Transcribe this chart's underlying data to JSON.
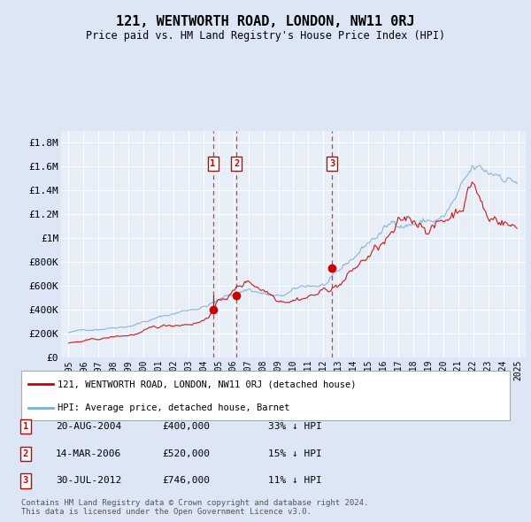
{
  "title": "121, WENTWORTH ROAD, LONDON, NW11 0RJ",
  "subtitle": "Price paid vs. HM Land Registry's House Price Index (HPI)",
  "bg_color": "#dce6f5",
  "plot_bg_color": "#e8eef8",
  "transaction_dates_decimal": [
    2004.633,
    2006.203,
    2012.581
  ],
  "transaction_prices": [
    400000,
    520000,
    746000
  ],
  "transaction_labels": [
    "1",
    "2",
    "3"
  ],
  "transaction_info": [
    {
      "num": "1",
      "date": "20-AUG-2004",
      "price": "£400,000",
      "hpi": "33% ↓ HPI"
    },
    {
      "num": "2",
      "date": "14-MAR-2006",
      "price": "£520,000",
      "hpi": "15% ↓ HPI"
    },
    {
      "num": "3",
      "date": "30-JUL-2012",
      "price": "£746,000",
      "hpi": "11% ↓ HPI"
    }
  ],
  "ylim": [
    0,
    1900000
  ],
  "xlim": [
    1994.5,
    2025.5
  ],
  "yticks": [
    0,
    200000,
    400000,
    600000,
    800000,
    1000000,
    1200000,
    1400000,
    1600000,
    1800000
  ],
  "ytick_labels": [
    "£0",
    "£200K",
    "£400K",
    "£600K",
    "£800K",
    "£1M",
    "£1.2M",
    "£1.4M",
    "£1.6M",
    "£1.8M"
  ],
  "xtick_years": [
    1995,
    1996,
    1997,
    1998,
    1999,
    2000,
    2001,
    2002,
    2003,
    2004,
    2005,
    2006,
    2007,
    2008,
    2009,
    2010,
    2011,
    2012,
    2013,
    2014,
    2015,
    2016,
    2017,
    2018,
    2019,
    2020,
    2021,
    2022,
    2023,
    2024,
    2025
  ],
  "red_color": "#cc0000",
  "blue_color": "#7ab0d4",
  "marker_color": "#cc0000",
  "vline_color": "#cc0000",
  "footer_text": "Contains HM Land Registry data © Crown copyright and database right 2024.\nThis data is licensed under the Open Government Licence v3.0.",
  "legend_prop_label": "121, WENTWORTH ROAD, LONDON, NW11 0RJ (detached house)",
  "legend_hpi_label": "HPI: Average price, detached house, Barnet"
}
